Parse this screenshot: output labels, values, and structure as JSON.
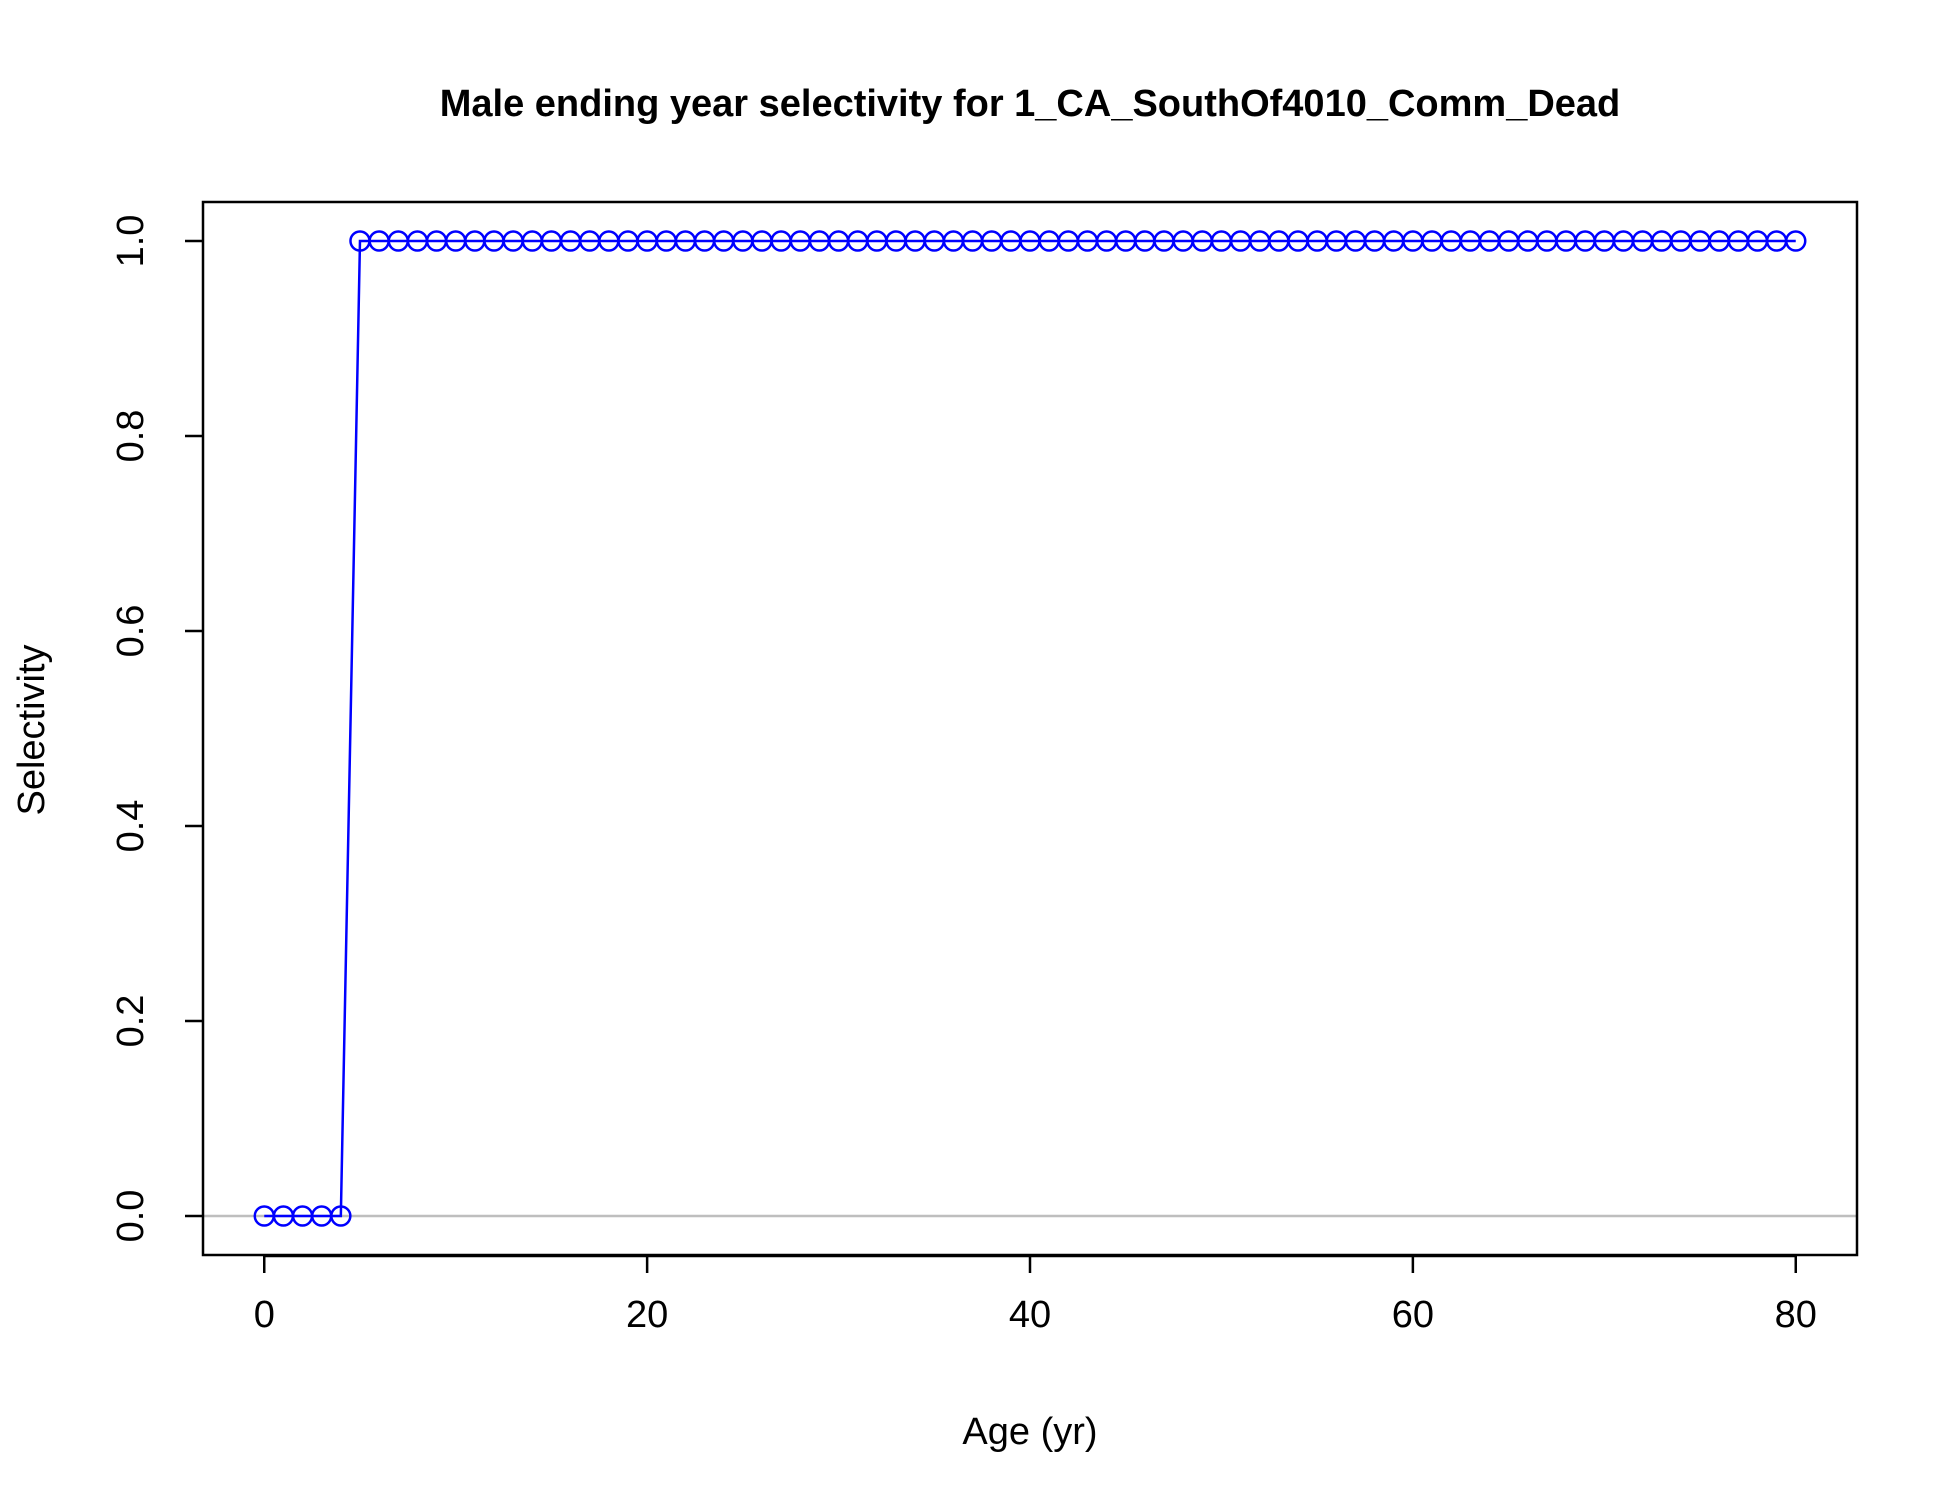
{
  "chart_data": {
    "type": "line",
    "title": "Male ending year selectivity for 1_CA_SouthOf4010_Comm_Dead",
    "xlabel": "Age (yr)",
    "ylabel": "Selectivity",
    "xlim": [
      -3.2,
      83.2
    ],
    "ylim": [
      -0.04,
      1.04
    ],
    "x_ticks": [
      0,
      20,
      40,
      60,
      80
    ],
    "x_tick_labels": [
      "0",
      "20",
      "40",
      "60",
      "80"
    ],
    "y_ticks": [
      0,
      0.2,
      0.4,
      0.6,
      0.8,
      1.0
    ],
    "y_tick_labels": [
      "0.0",
      "0.2",
      "0.4",
      "0.6",
      "0.8",
      "1.0"
    ],
    "reference_line_y": 0,
    "grid": false,
    "colors": {
      "series": "#0000ff",
      "reference": "#bebebe",
      "axes": "#000000"
    },
    "series": [
      {
        "x": [
          0,
          1,
          2,
          3,
          4,
          5,
          6,
          7,
          8,
          9,
          10,
          11,
          12,
          13,
          14,
          15,
          16,
          17,
          18,
          19,
          20,
          21,
          22,
          23,
          24,
          25,
          26,
          27,
          28,
          29,
          30,
          31,
          32,
          33,
          34,
          35,
          36,
          37,
          38,
          39,
          40,
          41,
          42,
          43,
          44,
          45,
          46,
          47,
          48,
          49,
          50,
          51,
          52,
          53,
          54,
          55,
          56,
          57,
          58,
          59,
          60,
          61,
          62,
          63,
          64,
          65,
          66,
          67,
          68,
          69,
          70,
          71,
          72,
          73,
          74,
          75,
          76,
          77,
          78,
          79,
          80
        ],
        "y": [
          0,
          0,
          0,
          0,
          0,
          1,
          1,
          1,
          1,
          1,
          1,
          1,
          1,
          1,
          1,
          1,
          1,
          1,
          1,
          1,
          1,
          1,
          1,
          1,
          1,
          1,
          1,
          1,
          1,
          1,
          1,
          1,
          1,
          1,
          1,
          1,
          1,
          1,
          1,
          1,
          1,
          1,
          1,
          1,
          1,
          1,
          1,
          1,
          1,
          1,
          1,
          1,
          1,
          1,
          1,
          1,
          1,
          1,
          1,
          1,
          1,
          1,
          1,
          1,
          1,
          1,
          1,
          1,
          1,
          1,
          1,
          1,
          1,
          1,
          1,
          1,
          1,
          1,
          1,
          1,
          1
        ]
      }
    ]
  }
}
